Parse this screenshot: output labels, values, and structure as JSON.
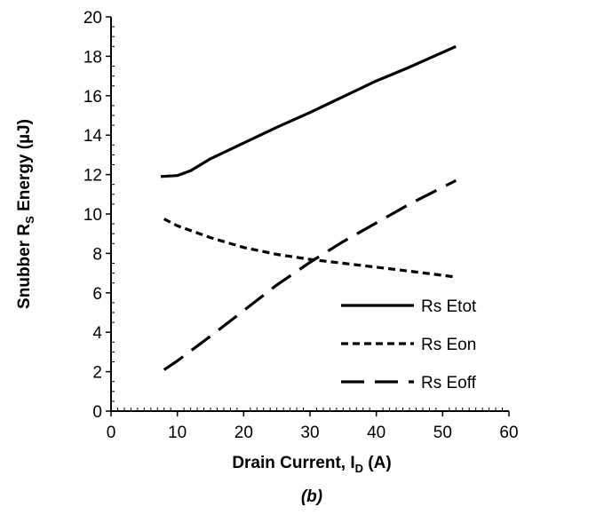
{
  "chart_data": {
    "type": "line",
    "title": "",
    "caption": "(b)",
    "xlabel": {
      "main": "Drain Current, I",
      "sub": "D",
      "suffix": " (A)"
    },
    "ylabel": {
      "main": "Snubber R",
      "sub": "S",
      "suffix": " Energy (µJ)"
    },
    "xlim": [
      0,
      60
    ],
    "ylim": [
      0,
      20
    ],
    "xticks": [
      0,
      10,
      20,
      30,
      40,
      50,
      60
    ],
    "yticks": [
      0,
      2,
      4,
      6,
      8,
      10,
      12,
      14,
      16,
      18,
      20
    ],
    "grid": false,
    "legend_position": "bottom-right",
    "series": [
      {
        "name": "Rs Etot",
        "style": "solid",
        "color": "#000000",
        "x": [
          7.5,
          10,
          12,
          15,
          20,
          25,
          30,
          35,
          40,
          45,
          52
        ],
        "y": [
          11.9,
          11.95,
          12.2,
          12.8,
          13.6,
          14.4,
          15.15,
          15.95,
          16.75,
          17.45,
          18.5
        ]
      },
      {
        "name": "Rs Eon",
        "style": "dotted",
        "color": "#000000",
        "x": [
          8,
          10,
          15,
          20,
          25,
          30,
          35,
          40,
          45,
          52
        ],
        "y": [
          9.75,
          9.4,
          8.8,
          8.3,
          7.95,
          7.7,
          7.5,
          7.3,
          7.1,
          6.8
        ]
      },
      {
        "name": "Rs Eoff",
        "style": "dashed",
        "color": "#000000",
        "x": [
          8,
          10,
          15,
          20,
          25,
          30,
          35,
          40,
          45,
          52
        ],
        "y": [
          2.1,
          2.55,
          3.8,
          5.1,
          6.4,
          7.55,
          8.6,
          9.55,
          10.5,
          11.7
        ]
      }
    ]
  }
}
